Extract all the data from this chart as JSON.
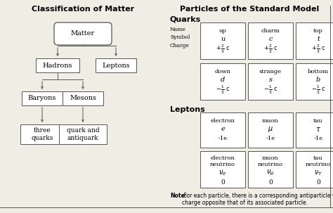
{
  "title_left": "Classification of Matter",
  "title_right": "Particles of the Standard Model",
  "bg_color": "#f0ede4",
  "box_color": "#ffffff",
  "border_color": "#555555",
  "text_color": "#000000",
  "quarks_label": "Quarks",
  "leptons_label": "Leptons",
  "note_bold": "Note:",
  "note_text": " For each particle, there is a corresponding antiparticle with a\ncharge opposite that of its associated particle.",
  "quark_row1": [
    {
      "name": "up",
      "symbol": "u",
      "charge": "+$\\frac{2}{3}$ c"
    },
    {
      "name": "charm",
      "symbol": "c",
      "charge": "+$\\frac{2}{3}$ c"
    },
    {
      "name": "top",
      "symbol": "t",
      "charge": "+$\\frac{2}{3}$ c"
    }
  ],
  "quark_row2": [
    {
      "name": "down",
      "symbol": "d",
      "charge": "$-\\frac{1}{3}$ c"
    },
    {
      "name": "strange",
      "symbol": "s",
      "charge": "$-\\frac{1}{3}$ c"
    },
    {
      "name": "bottom",
      "symbol": "b",
      "charge": "$-\\frac{1}{3}$ c"
    }
  ],
  "lepton_row1": [
    {
      "name": "electron",
      "symbol": "e",
      "charge": "-1e"
    },
    {
      "name": "muon",
      "symbol": "$\\mu$",
      "charge": "-1e"
    },
    {
      "name": "tau",
      "symbol": "$\\tau$",
      "charge": "-1e"
    }
  ],
  "lepton_row2": [
    {
      "name": "electron\nneutrino",
      "symbol": "$\\nu_e$",
      "charge": "0"
    },
    {
      "name": "muon\nneutrino",
      "symbol": "$\\nu_{\\mu}$",
      "charge": "0"
    },
    {
      "name": "tau\nneutrino",
      "symbol": "$\\nu_{\\tau}$",
      "charge": "0"
    }
  ]
}
